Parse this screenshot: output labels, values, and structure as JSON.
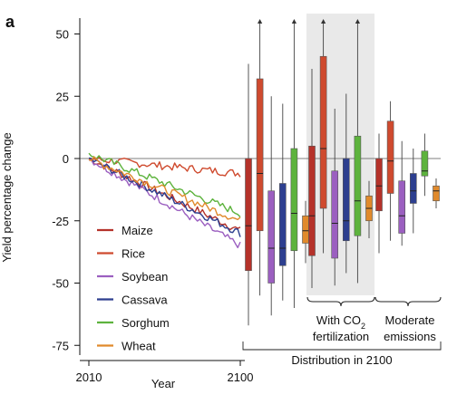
{
  "chart_data": {
    "type": "line",
    "panel_label": "a",
    "xlabel": "Year",
    "ylabel": "Yield percentage change",
    "x_ticks": [
      "2010",
      "2100"
    ],
    "y_ticks": [
      50,
      25,
      0,
      -25,
      -50,
      -75
    ],
    "ylim": [
      -78,
      58
    ],
    "grid": false,
    "zero_line": true,
    "legend_position": "lower-left",
    "colors": {
      "Maize": "#b5322a",
      "Rice": "#cf4a2e",
      "Soybean": "#9b5fc0",
      "Cassava": "#2d3f8f",
      "Sorghum": "#5db33d",
      "Wheat": "#e08a2c"
    },
    "line_series": [
      {
        "name": "Maize",
        "x_start": 2010,
        "x_end": 2100,
        "start": 0,
        "end": -29
      },
      {
        "name": "Rice",
        "x_start": 2010,
        "x_end": 2100,
        "start": 0,
        "end": -6
      },
      {
        "name": "Soybean",
        "x_start": 2010,
        "x_end": 2100,
        "start": 0,
        "end": -35
      },
      {
        "name": "Cassava",
        "x_start": 2010,
        "x_end": 2100,
        "start": 0,
        "end": -30
      },
      {
        "name": "Sorghum",
        "x_start": 2010,
        "x_end": 2100,
        "start": 2,
        "end": -22
      },
      {
        "name": "Wheat",
        "x_start": 2010,
        "x_end": 2100,
        "start": 0,
        "end": -25
      }
    ],
    "distribution_label": "Distribution in 2100",
    "groups": [
      {
        "label": "",
        "shaded": false,
        "boxes": [
          {
            "crop": "Maize",
            "whisker_low": -67,
            "q1": -45,
            "median": -27,
            "q3": 0,
            "whisker_high": 38,
            "arrow": false
          },
          {
            "crop": "Rice",
            "whisker_low": -55,
            "q1": -29,
            "median": -6,
            "q3": 32,
            "whisker_high": 56,
            "arrow": true
          },
          {
            "crop": "Soybean",
            "whisker_low": -63,
            "q1": -50,
            "median": -36,
            "q3": -13,
            "whisker_high": 25,
            "arrow": false
          },
          {
            "crop": "Cassava",
            "whisker_low": -57,
            "q1": -43,
            "median": -36,
            "q3": -10,
            "whisker_high": 22,
            "arrow": false
          },
          {
            "crop": "Sorghum",
            "whisker_low": -60,
            "q1": -37,
            "median": -22,
            "q3": 4,
            "whisker_high": 56,
            "arrow": true
          },
          {
            "crop": "Wheat",
            "whisker_low": -42,
            "q1": -34,
            "median": -29,
            "q3": -23,
            "whisker_high": -17,
            "arrow": false
          }
        ]
      },
      {
        "label": "With CO2 fertilization",
        "label_parts": {
          "pre": "With CO",
          "sub": "2",
          "line2": "fertilization"
        },
        "shaded": true,
        "boxes": [
          {
            "crop": "Maize",
            "whisker_low": -52,
            "q1": -39,
            "median": -23,
            "q3": 5,
            "whisker_high": 36,
            "arrow": false
          },
          {
            "crop": "Rice",
            "whisker_low": -38,
            "q1": -20,
            "median": 4,
            "q3": 41,
            "whisker_high": 56,
            "arrow": true
          },
          {
            "crop": "Soybean",
            "whisker_low": -51,
            "q1": -40,
            "median": -26,
            "q3": -5,
            "whisker_high": 20,
            "arrow": false
          },
          {
            "crop": "Cassava",
            "whisker_low": -46,
            "q1": -33,
            "median": -25,
            "q3": 0,
            "whisker_high": 26,
            "arrow": false
          },
          {
            "crop": "Sorghum",
            "whisker_low": -50,
            "q1": -31,
            "median": -17,
            "q3": 9,
            "whisker_high": 56,
            "arrow": true
          },
          {
            "crop": "Wheat",
            "whisker_low": -32,
            "q1": -25,
            "median": -20,
            "q3": -15,
            "whisker_high": -9,
            "arrow": false
          }
        ]
      },
      {
        "label": "Moderate emissions",
        "label_parts": {
          "pre": "Moderate",
          "sub": "",
          "line2": "emissions"
        },
        "shaded": false,
        "boxes": [
          {
            "crop": "Maize",
            "whisker_low": -38,
            "q1": -21,
            "median": -11,
            "q3": 0,
            "whisker_high": 10,
            "arrow": false
          },
          {
            "crop": "Rice",
            "whisker_low": -33,
            "q1": -14,
            "median": -1,
            "q3": 15,
            "whisker_high": 23,
            "arrow": false
          },
          {
            "crop": "Soybean",
            "whisker_low": -35,
            "q1": -30,
            "median": -23,
            "q3": -9,
            "whisker_high": 7,
            "arrow": false
          },
          {
            "crop": "Cassava",
            "whisker_low": -30,
            "q1": -18,
            "median": -13,
            "q3": -6,
            "whisker_high": 4,
            "arrow": false
          },
          {
            "crop": "Sorghum",
            "whisker_low": -15,
            "q1": -7,
            "median": -5,
            "q3": 3,
            "whisker_high": 10,
            "arrow": false
          },
          {
            "crop": "Wheat",
            "whisker_low": -20,
            "q1": -17,
            "median": -13,
            "q3": -11,
            "whisker_high": -8,
            "arrow": false
          }
        ]
      }
    ]
  }
}
